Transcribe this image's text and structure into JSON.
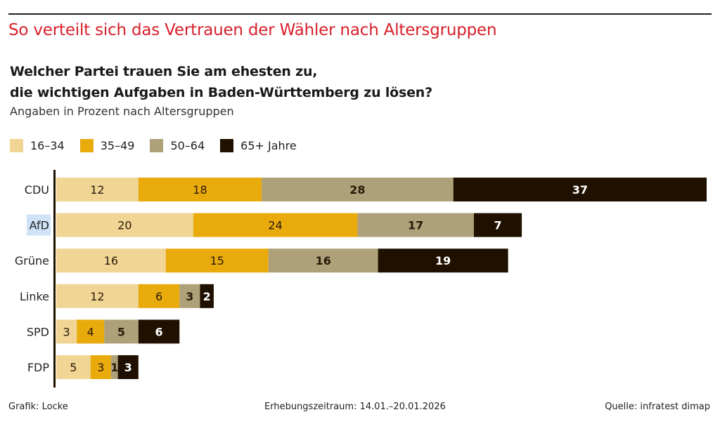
{
  "header": {
    "headline": "So verteilt sich das Vertrauen der Wähler nach Altersgruppen",
    "question_line1": "Welcher Partei trauen Sie am ehesten zu,",
    "question_line2": "die wichtigen Aufgaben in Baden-Württemberg zu lösen?",
    "subtitle": "Angaben in Prozent nach Altersgruppen"
  },
  "footer": {
    "credit": "Grafik: Locke",
    "period": "Erhebungszeitraum: 14.01.–20.01.2026",
    "source": "Quelle: infratest dimap"
  },
  "chart_data": {
    "type": "bar",
    "orientation": "horizontal",
    "stacked": true,
    "title": "So verteilt sich das Vertrauen der Wähler nach Altersgruppen",
    "subtitle": "Angaben in Prozent nach Altersgruppen",
    "xlabel": "",
    "ylabel": "",
    "grid": false,
    "legend_position": "top-left",
    "categories": [
      "CDU",
      "AfD",
      "Grüne",
      "Linke",
      "SPD",
      "FDP"
    ],
    "highlighted_category": "AfD",
    "series": [
      {
        "name": "16–34",
        "color": "#f0d595",
        "label_color": "#2a1a0a",
        "values": [
          12,
          20,
          16,
          12,
          3,
          5
        ]
      },
      {
        "name": "35–49",
        "color": "#e9aa0c",
        "label_color": "#2a1a0a",
        "values": [
          18,
          24,
          15,
          6,
          4,
          3
        ]
      },
      {
        "name": "50–64",
        "color": "#aea078",
        "label_color": "#2a1a0a",
        "values": [
          28,
          17,
          16,
          3,
          5,
          1
        ]
      },
      {
        "name": "65+ Jahre",
        "color": "#1f1000",
        "label_color": "#ffffff",
        "values": [
          37,
          7,
          19,
          2,
          6,
          3
        ]
      }
    ],
    "xlim": [
      0,
      95
    ]
  }
}
